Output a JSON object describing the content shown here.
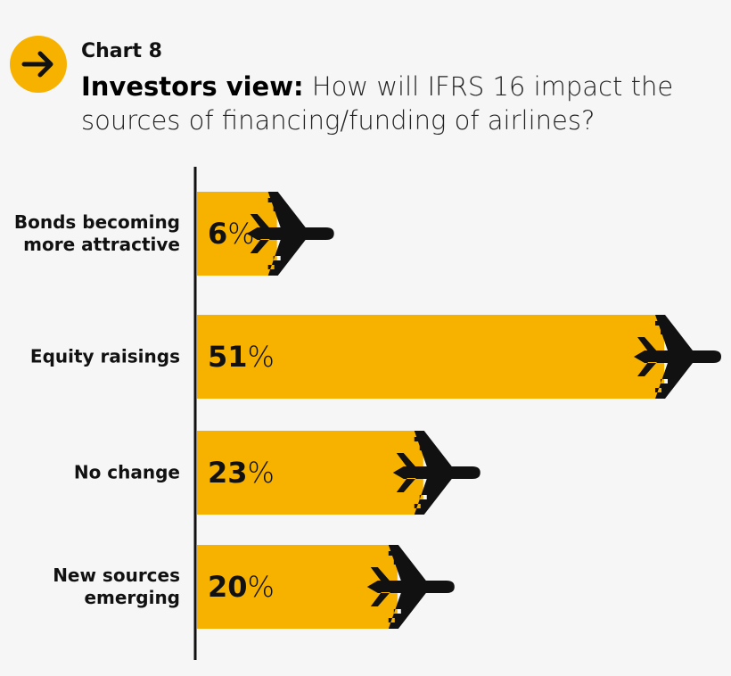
{
  "chart_data": {
    "type": "bar",
    "orientation": "horizontal",
    "label": "Chart 8",
    "title": "Investors view:",
    "subtitle": "How will IFRS 16 impact the sources of financing/funding of airlines?",
    "categories": [
      "Bonds becoming more attractive",
      "Equity raisings",
      "No change",
      "New sources emerging"
    ],
    "values": [
      6,
      51,
      23,
      20
    ],
    "value_labels": [
      "6%",
      "51%",
      "23%",
      "20%"
    ],
    "color": "#f7b200",
    "xlim": [
      -3.5,
      51
    ]
  }
}
